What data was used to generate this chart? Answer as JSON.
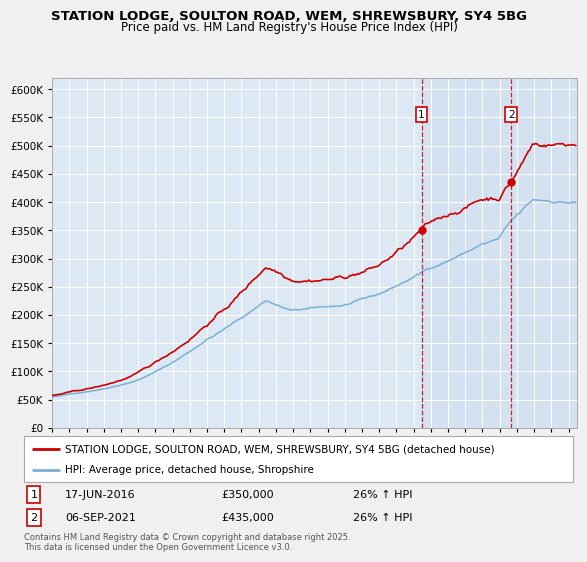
{
  "title1": "STATION LODGE, SOULTON ROAD, WEM, SHREWSBURY, SY4 5BG",
  "title2": "Price paid vs. HM Land Registry's House Price Index (HPI)",
  "red_label": "STATION LODGE, SOULTON ROAD, WEM, SHREWSBURY, SY4 5BG (detached house)",
  "blue_label": "HPI: Average price, detached house, Shropshire",
  "annotation1_date": "17-JUN-2016",
  "annotation1_price": "£350,000",
  "annotation1_hpi": "26% ↑ HPI",
  "annotation2_date": "06-SEP-2021",
  "annotation2_price": "£435,000",
  "annotation2_hpi": "26% ↑ HPI",
  "vline1_year": 2016.46,
  "vline2_year": 2021.68,
  "marker1_year": 2016.46,
  "marker1_val_red": 350000,
  "marker2_year": 2021.68,
  "marker2_val_red": 435000,
  "ylim": [
    0,
    620000
  ],
  "xlim_start": 1995.0,
  "xlim_end": 2025.5,
  "fig_bg_color": "#f0f0f0",
  "plot_bg_color": "#dce8f4",
  "grid_color": "#ffffff",
  "red_color": "#cc0000",
  "blue_color": "#7ab0d4",
  "vline_color": "#cc0000",
  "footer_text": "Contains HM Land Registry data © Crown copyright and database right 2025.\nThis data is licensed under the Open Government Licence v3.0."
}
